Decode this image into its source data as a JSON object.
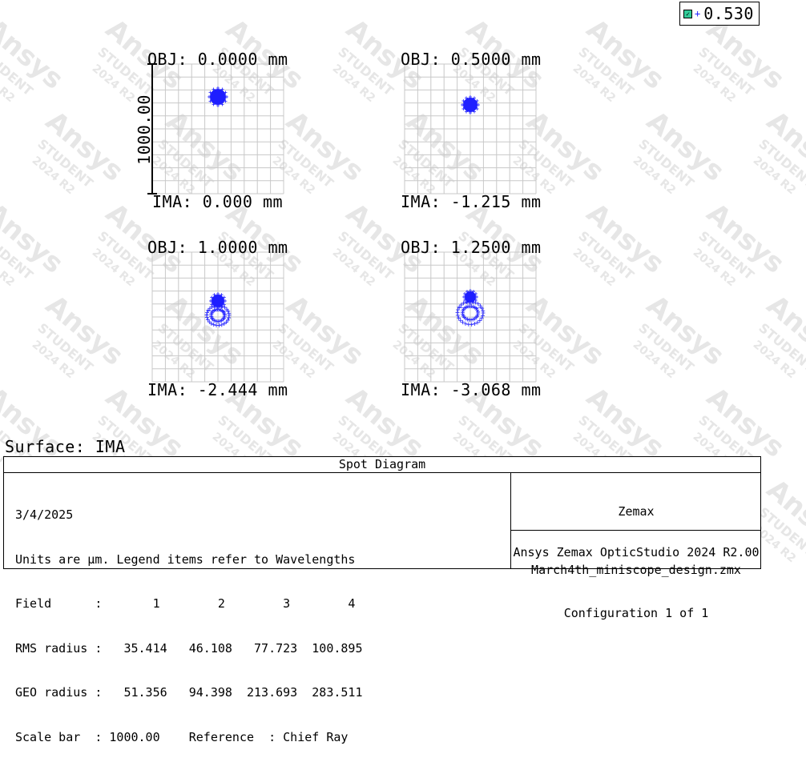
{
  "chart_data": {
    "type": "scatter",
    "title": "Spot Diagram",
    "legend": {
      "position": "top-right",
      "entries": [
        "0.530"
      ],
      "color": "#1e1eff"
    },
    "scale_bar_label": "1000.00",
    "fields": [
      {
        "obj": "OBJ: 0.0000 mm",
        "ima": "IMA: 0.000 mm",
        "spot_center": [
          0,
          -40
        ],
        "core_radius": 10,
        "ring_radius": 0,
        "ring_offset": 0
      },
      {
        "obj": "OBJ: 0.5000 mm",
        "ima": "IMA: -1.215 mm",
        "spot_center": [
          0,
          -30
        ],
        "core_radius": 9,
        "ring_radius": 0,
        "ring_offset": 0
      },
      {
        "obj": "OBJ: 1.0000 mm",
        "ima": "IMA: -2.444 mm",
        "spot_center": [
          0,
          -20
        ],
        "core_radius": 8,
        "ring_radius": 14,
        "ring_offset": 18
      },
      {
        "obj": "OBJ: 1.2500 mm",
        "ima": "IMA: -3.068 mm",
        "spot_center": [
          0,
          -25
        ],
        "core_radius": 7,
        "ring_radius": 16,
        "ring_offset": 20
      }
    ],
    "grid": true,
    "units": "µm"
  },
  "surface_label": "Surface: IMA",
  "info": {
    "title": "Spot Diagram",
    "date": "3/4/2025",
    "units_line": "Units are µm. Legend items refer to Wavelengths",
    "field_line": "Field      :       1        2        3        4",
    "rms_line": "RMS radius :   35.414   46.108   77.723  100.895",
    "geo_line": "GEO radius :   51.356   94.398  213.693  283.511",
    "scale_line": "Scale bar  : 1000.00    Reference  : Chief Ray",
    "company": "Zemax",
    "product": "Ansys Zemax OpticStudio 2024 R2.00",
    "file": "March4th_miniscope_design.zmx",
    "config": "Configuration 1 of 1"
  },
  "watermark": {
    "brand": "Ansys",
    "edition": "STUDENT",
    "version": "2024 R2"
  },
  "colors": {
    "spot": "#1e1eff",
    "grid": "#c8c8c8",
    "watermark": "#e6e6e6"
  }
}
